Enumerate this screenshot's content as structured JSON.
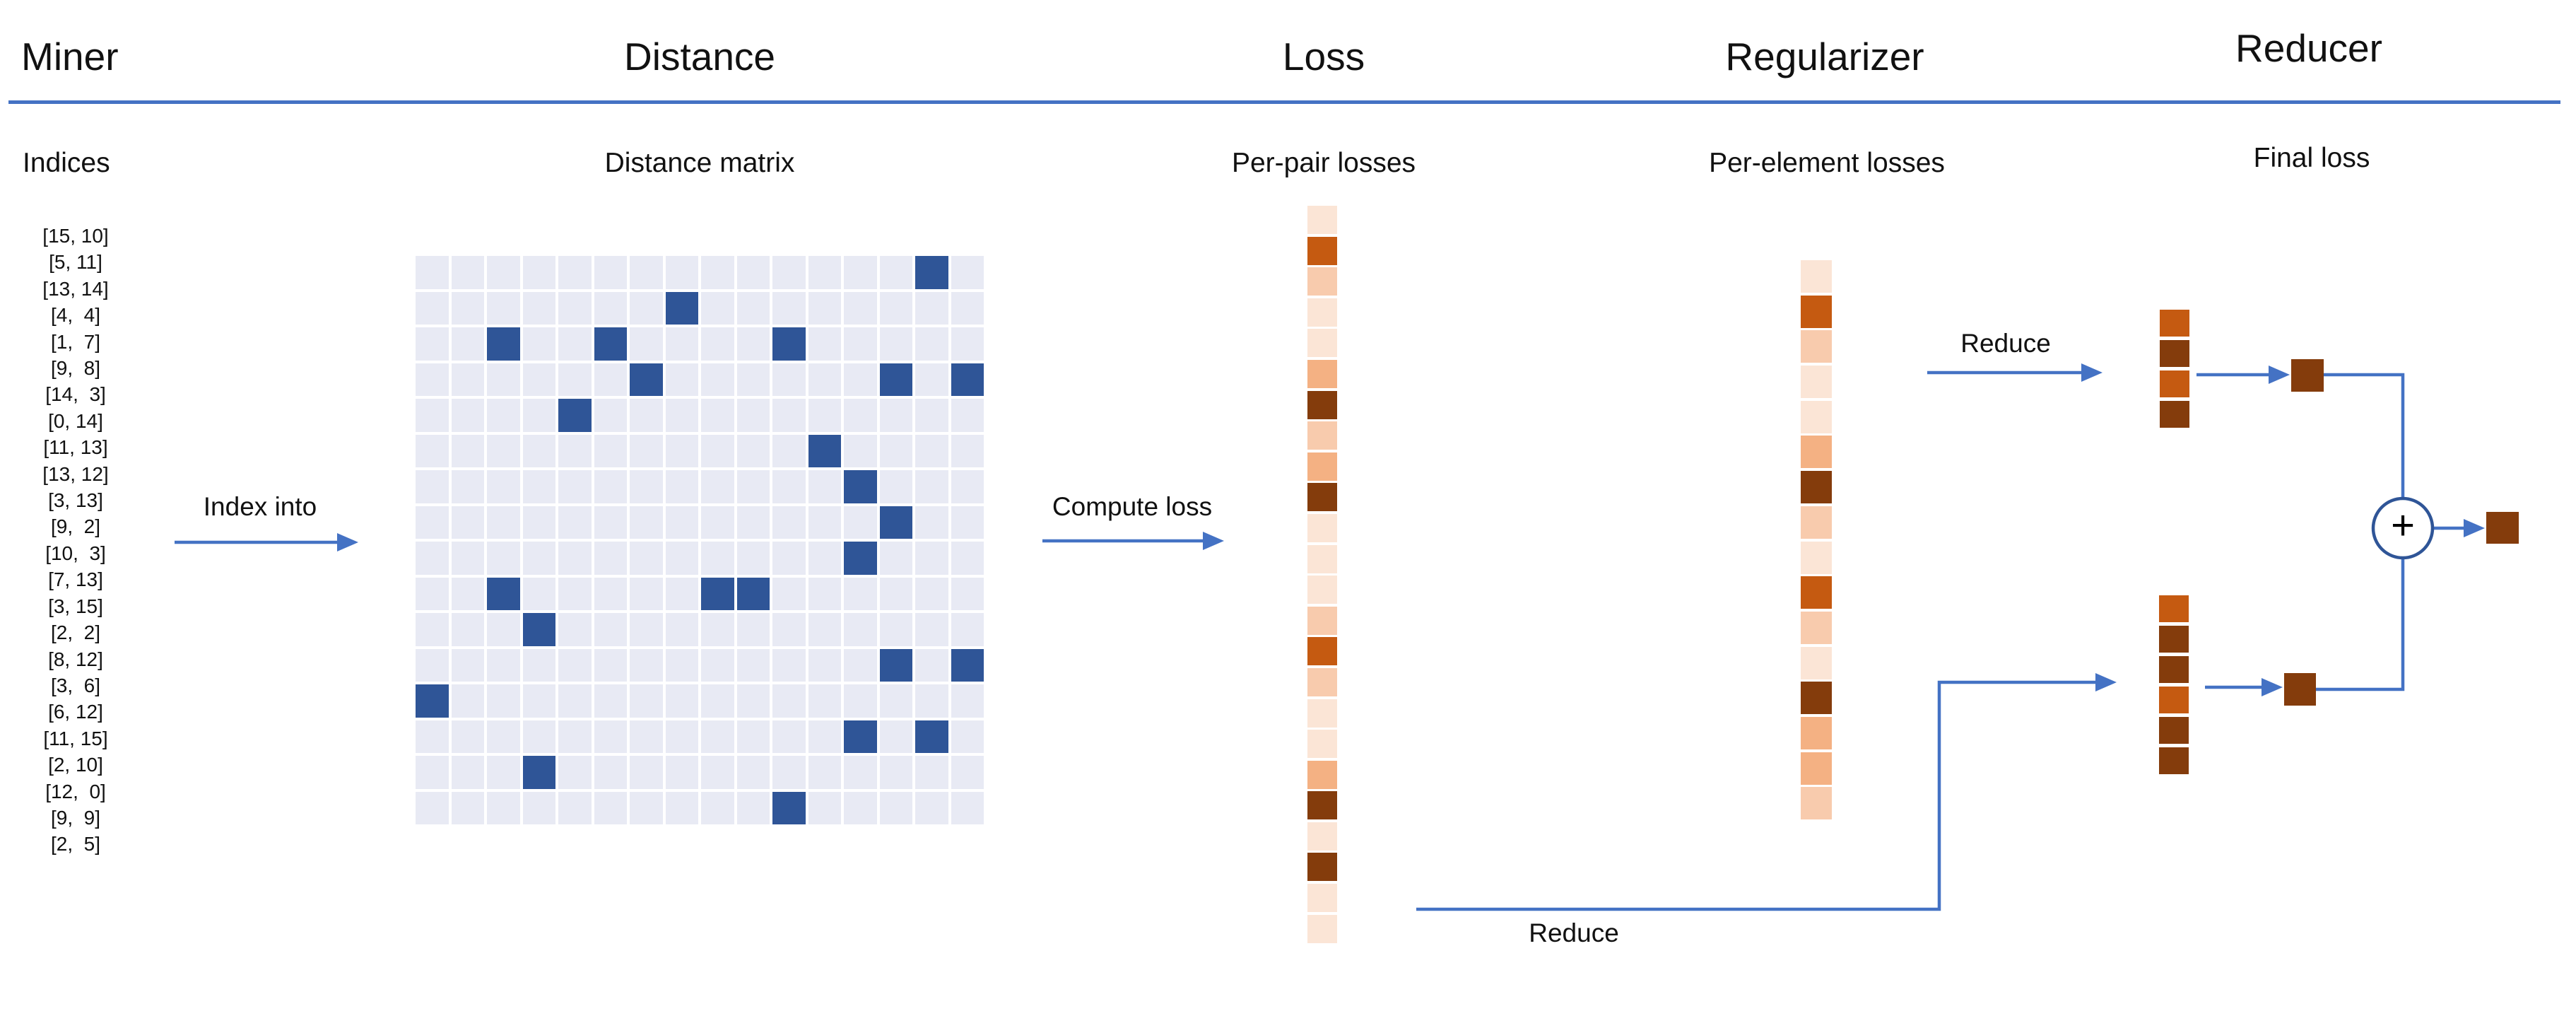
{
  "header": {
    "titles": [
      {
        "label": "Miner"
      },
      {
        "label": "Distance"
      },
      {
        "label": "Loss"
      },
      {
        "label": "Regularizer"
      },
      {
        "label": "Reducer"
      }
    ]
  },
  "subtitles": {
    "miner": "Indices",
    "distance": "Distance matrix",
    "loss": "Per-pair losses",
    "regularizer": "Per-element losses",
    "reducer": "Final loss"
  },
  "arrow_labels": {
    "index_into": "Index into",
    "compute_loss": "Compute loss",
    "reduce_top": "Reduce",
    "reduce_bottom": "Reduce"
  },
  "miner": {
    "indices": [
      "[15, 10]",
      "[5, 11]",
      "[13, 14]",
      "[4,  4]",
      "[1,  7]",
      "[9,  8]",
      "[14,  3]",
      "[0, 14]",
      "[11, 13]",
      "[13, 12]",
      "[3, 13]",
      "[9,  2]",
      "[10,  3]",
      "[7, 13]",
      "[3, 15]",
      "[2,  2]",
      "[8, 12]",
      "[3,  6]",
      "[6, 12]",
      "[11, 15]",
      "[2, 10]",
      "[12,  0]",
      "[9,  9]",
      "[2,  5]"
    ]
  },
  "distance": {
    "grid_size": 16,
    "highlighted_cells": [
      [
        15,
        10
      ],
      [
        5,
        11
      ],
      [
        13,
        14
      ],
      [
        4,
        4
      ],
      [
        1,
        7
      ],
      [
        9,
        8
      ],
      [
        14,
        3
      ],
      [
        0,
        14
      ],
      [
        11,
        13
      ],
      [
        13,
        12
      ],
      [
        3,
        13
      ],
      [
        9,
        2
      ],
      [
        10,
        3
      ],
      [
        7,
        13
      ],
      [
        3,
        15
      ],
      [
        2,
        2
      ],
      [
        8,
        12
      ],
      [
        3,
        6
      ],
      [
        6,
        12
      ],
      [
        11,
        15
      ],
      [
        2,
        10
      ],
      [
        12,
        0
      ],
      [
        9,
        9
      ],
      [
        2,
        5
      ]
    ],
    "cell_color_light": "#E8EAF4",
    "cell_color_dark": "#2F5597"
  },
  "loss": {
    "cells": [
      "L",
      "S",
      "M",
      "L",
      "L",
      "O",
      "D",
      "M",
      "O",
      "D",
      "L",
      "L",
      "L",
      "M",
      "S",
      "M",
      "L",
      "L",
      "O",
      "D",
      "L",
      "D",
      "L",
      "L"
    ]
  },
  "regularizer": {
    "cells": [
      "L",
      "S",
      "M",
      "L",
      "L",
      "O",
      "D",
      "M",
      "L",
      "S",
      "M",
      "L",
      "D",
      "O",
      "O",
      "M"
    ]
  },
  "reducer": {
    "top_stack": [
      "S",
      "D",
      "S",
      "D"
    ],
    "bottom_stack": [
      "S",
      "D",
      "D",
      "S",
      "D",
      "D"
    ],
    "top_square": "D",
    "bottom_square": "D",
    "final_square": "D",
    "plus_sign": "+"
  },
  "colors": {
    "arrow_blue": "#4472C4",
    "underline_blue": "#4472C4",
    "circle_stroke": "#2F5597",
    "text": "#111111",
    "palette": {
      "L": "#FBE5D6",
      "M": "#F8CBAD",
      "O": "#F4B183",
      "S": "#C55A11",
      "D": "#843C0C"
    }
  }
}
